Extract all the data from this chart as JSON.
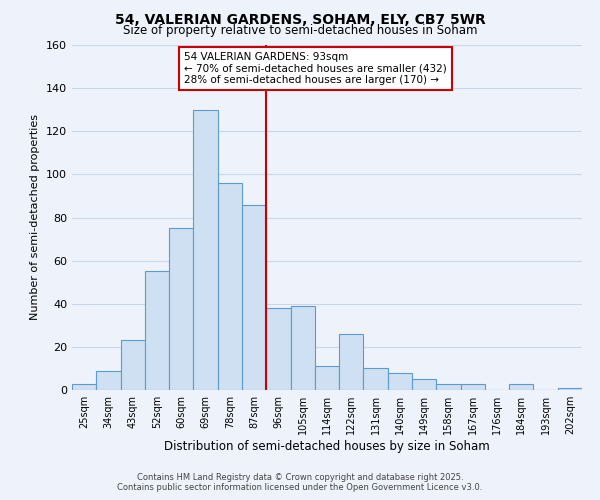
{
  "title": "54, VALERIAN GARDENS, SOHAM, ELY, CB7 5WR",
  "subtitle": "Size of property relative to semi-detached houses in Soham",
  "xlabel": "Distribution of semi-detached houses by size in Soham",
  "ylabel": "Number of semi-detached properties",
  "bin_labels": [
    "25sqm",
    "34sqm",
    "43sqm",
    "52sqm",
    "60sqm",
    "69sqm",
    "78sqm",
    "87sqm",
    "96sqm",
    "105sqm",
    "114sqm",
    "122sqm",
    "131sqm",
    "140sqm",
    "149sqm",
    "158sqm",
    "167sqm",
    "176sqm",
    "184sqm",
    "193sqm",
    "202sqm"
  ],
  "bar_values": [
    3,
    9,
    23,
    55,
    75,
    130,
    96,
    86,
    38,
    39,
    11,
    26,
    10,
    8,
    5,
    3,
    3,
    0,
    3,
    0,
    1
  ],
  "bar_color": "#cfe0f2",
  "bar_edge_color": "#5b9bd5",
  "vline_color": "#cc0000",
  "ylim": [
    0,
    160
  ],
  "yticks": [
    0,
    20,
    40,
    60,
    80,
    100,
    120,
    140,
    160
  ],
  "annotation_title": "54 VALERIAN GARDENS: 93sqm",
  "annotation_line1": "← 70% of semi-detached houses are smaller (432)",
  "annotation_line2": "28% of semi-detached houses are larger (170) →",
  "annotation_box_color": "#ffffff",
  "annotation_box_edge": "#cc0000",
  "grid_color": "#c8d8ec",
  "background_color": "#eef2fa",
  "footer_line1": "Contains HM Land Registry data © Crown copyright and database right 2025.",
  "footer_line2": "Contains public sector information licensed under the Open Government Licence v3.0."
}
